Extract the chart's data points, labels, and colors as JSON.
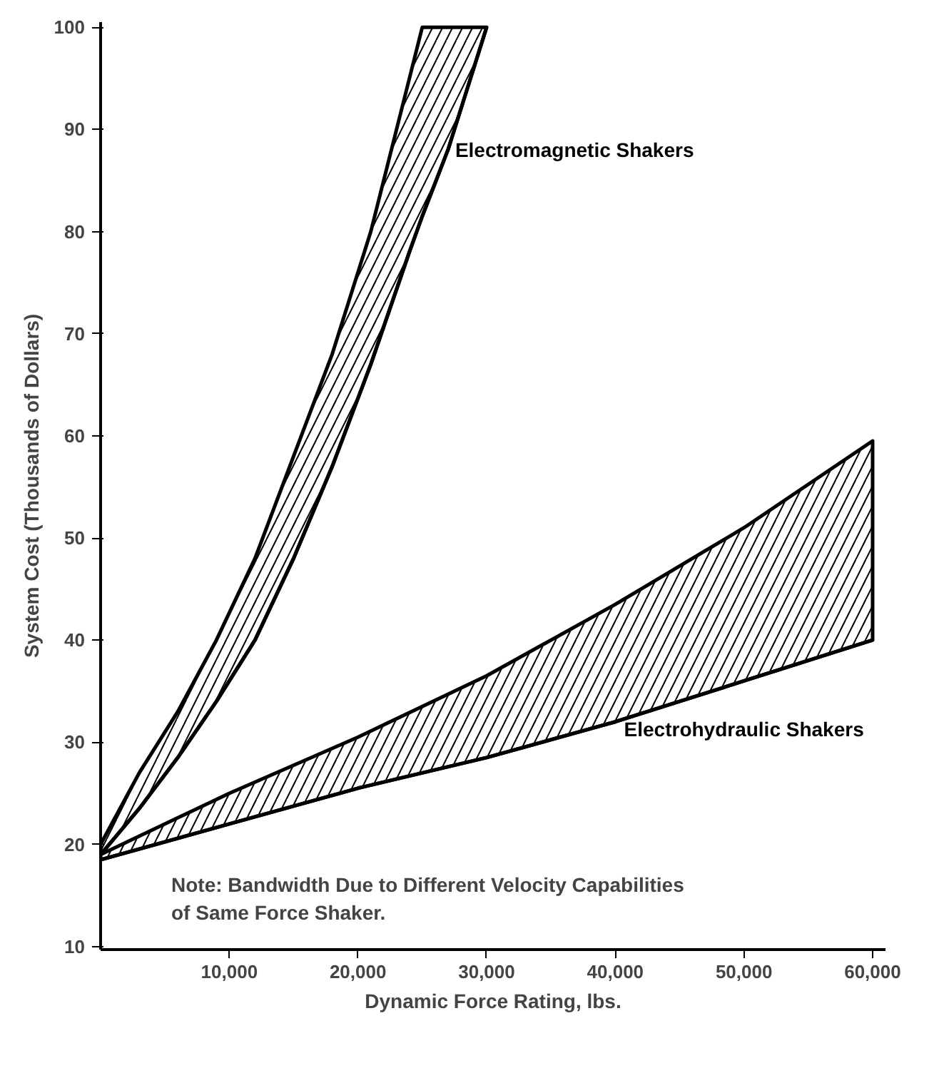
{
  "chart_data": {
    "type": "line",
    "xlabel": "Dynamic Force Rating, lbs.",
    "ylabel": "System Cost (Thousands of Dollars)",
    "xlim": [
      0,
      61000
    ],
    "ylim": [
      9.7,
      100.5
    ],
    "xticks": [
      {
        "value": 10000,
        "label": "10,000"
      },
      {
        "value": 20000,
        "label": "20,000"
      },
      {
        "value": 30000,
        "label": "30,000"
      },
      {
        "value": 40000,
        "label": "40,000"
      },
      {
        "value": 50000,
        "label": "50,000"
      },
      {
        "value": 60000,
        "label": "60,000"
      }
    ],
    "yticks": [
      10,
      20,
      30,
      40,
      50,
      60,
      70,
      80,
      90,
      100
    ],
    "grid": false,
    "series": [
      {
        "name": "Electromagnetic Shakers",
        "color": "#000000",
        "x": [
          0,
          3000,
          6000,
          9000,
          12000,
          15000,
          18000,
          21000,
          24000,
          25000,
          27000,
          30000
        ],
        "values": [
          19,
          23.5,
          28.5,
          34,
          40,
          48,
          57,
          67,
          78,
          81.5,
          88,
          100
        ],
        "lower": [
          19,
          23.5,
          28.5,
          34,
          40,
          48,
          57,
          67,
          78,
          81.5,
          88,
          100
        ],
        "upper": [
          20,
          27,
          33,
          40,
          48,
          58,
          68,
          80,
          95,
          100,
          100,
          100
        ]
      },
      {
        "name": "Electrohydraulic Shakers",
        "color": "#000000",
        "x": [
          0,
          10000,
          20000,
          30000,
          40000,
          50000,
          60000
        ],
        "values": [
          18.5,
          22,
          25.5,
          28.5,
          32,
          36,
          40
        ],
        "lower": [
          18.5,
          22,
          25.5,
          28.5,
          32,
          36,
          40
        ],
        "upper": [
          19,
          25,
          30.5,
          36.5,
          43.5,
          51,
          59.5
        ]
      }
    ],
    "annotations": [
      "Note:  Bandwidth Due to Different Velocity Capabilities\nof Same Force Shaker."
    ]
  }
}
